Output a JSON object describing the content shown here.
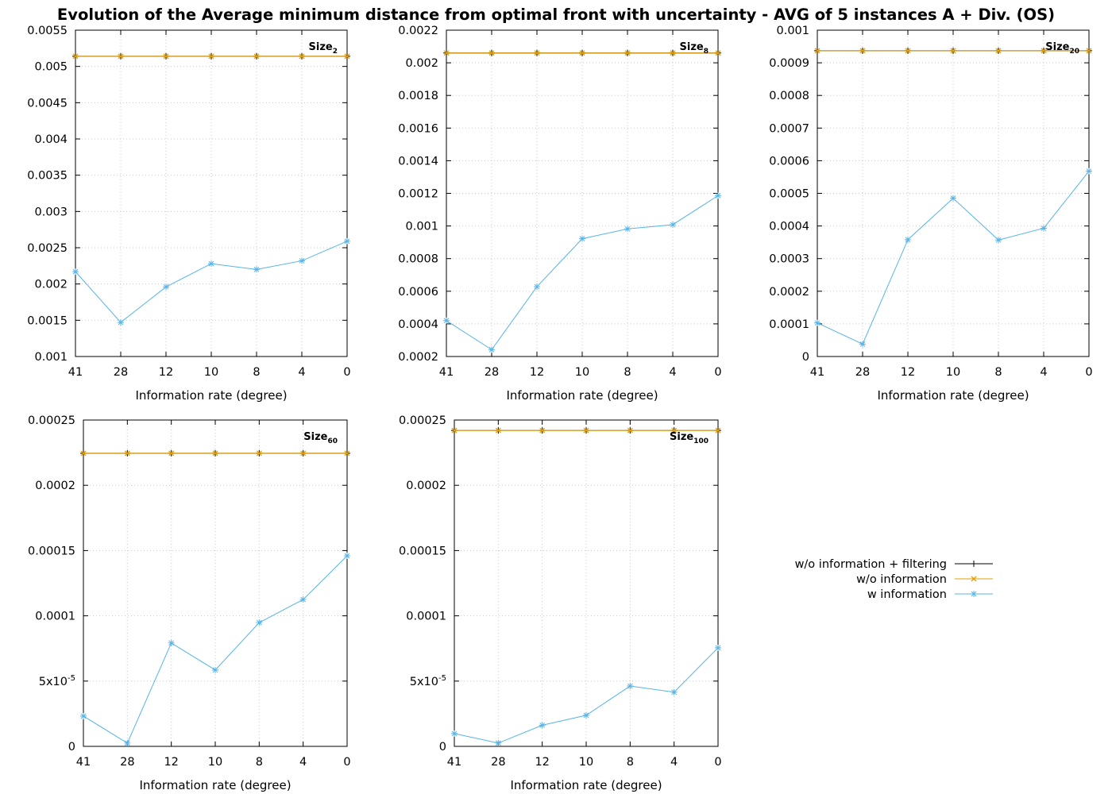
{
  "chart_data": {
    "type": "line",
    "title": "Evolution of the Average minimum distance from optimal front with uncertainty - AVG of 5 instances A + Div. (OS)",
    "x_categories": [
      "41",
      "28",
      "12",
      "10",
      "8",
      "4",
      "0"
    ],
    "xlabel": "Information rate (degree)",
    "grid": true,
    "colors": {
      "w/o information + filtering": "#000000",
      "w/o information": "#e69f00",
      "w information": "#56b4e9"
    },
    "legend": {
      "placement": "right, below top row",
      "entries": [
        "w/o information + filtering",
        "w/o information",
        "w information"
      ]
    },
    "panels": [
      {
        "label_base": "Size",
        "label_sub": "2",
        "label_position": "top-right",
        "ylim": [
          0.001,
          0.0055
        ],
        "ytick_values": [
          0.001,
          0.0015,
          0.002,
          0.0025,
          0.003,
          0.0035,
          0.004,
          0.0045,
          0.005,
          0.0055
        ],
        "ytick_labels": [
          "0.001",
          "0.0015",
          "0.002",
          "0.0025",
          "0.003",
          "0.0035",
          "0.004",
          "0.0045",
          "0.005",
          "0.0055"
        ],
        "series": [
          {
            "name": "w/o information + filtering",
            "values": [
              0.00514,
              0.00514,
              0.00514,
              0.00514,
              0.00514,
              0.00514,
              0.00514
            ]
          },
          {
            "name": "w/o information",
            "values": [
              0.00514,
              0.00514,
              0.00514,
              0.00514,
              0.00514,
              0.00514,
              0.00514
            ]
          },
          {
            "name": "w information",
            "values": [
              0.00217,
              0.00147,
              0.00196,
              0.00228,
              0.0022,
              0.00232,
              0.00259
            ]
          }
        ]
      },
      {
        "label_base": "Size",
        "label_sub": "8",
        "label_position": "top-right",
        "ylim": [
          0.0002,
          0.0022
        ],
        "ytick_values": [
          0.0002,
          0.0004,
          0.0006,
          0.0008,
          0.001,
          0.0012,
          0.0014,
          0.0016,
          0.0018,
          0.002,
          0.0022
        ],
        "ytick_labels": [
          "0.0002",
          "0.0004",
          "0.0006",
          "0.0008",
          "0.001",
          "0.0012",
          "0.0014",
          "0.0016",
          "0.0018",
          "0.002",
          "0.0022"
        ],
        "series": [
          {
            "name": "w/o information + filtering",
            "values": [
              0.00206,
              0.00206,
              0.00206,
              0.00206,
              0.00206,
              0.00206,
              0.00206
            ]
          },
          {
            "name": "w/o information",
            "values": [
              0.00206,
              0.00206,
              0.00206,
              0.00206,
              0.00206,
              0.00206,
              0.00206
            ]
          },
          {
            "name": "w information",
            "values": [
              0.00042,
              0.000242,
              0.000628,
              0.000922,
              0.000982,
              0.001008,
              0.001186
            ]
          }
        ]
      },
      {
        "label_base": "Size",
        "label_sub": "20",
        "label_position": "top-right",
        "ylim": [
          0,
          0.001
        ],
        "ytick_values": [
          0,
          0.0001,
          0.0002,
          0.0003,
          0.0004,
          0.0005,
          0.0006,
          0.0007,
          0.0008,
          0.0009,
          0.001
        ],
        "ytick_labels": [
          "0",
          "0.0001",
          "0.0002",
          "0.0003",
          "0.0004",
          "0.0005",
          "0.0006",
          "0.0007",
          "0.0008",
          "0.0009",
          "0.001"
        ],
        "series": [
          {
            "name": "w/o information + filtering",
            "values": [
              0.000937,
              0.000937,
              0.000937,
              0.000937,
              0.000937,
              0.000937,
              0.000937
            ]
          },
          {
            "name": "w/o information",
            "values": [
              0.000937,
              0.000937,
              0.000937,
              0.000937,
              0.000937,
              0.000937,
              0.000937
            ]
          },
          {
            "name": "w information",
            "values": [
              0.000103,
              3.8e-05,
              0.000358,
              0.000485,
              0.000357,
              0.000393,
              0.000568
            ]
          }
        ]
      },
      {
        "label_base": "Size",
        "label_sub": "60",
        "label_position": "top-right",
        "ylim": [
          0,
          0.00025
        ],
        "ytick_values": [
          0,
          5e-05,
          0.0001,
          0.00015,
          0.0002,
          0.00025
        ],
        "ytick_labels": [
          "0",
          "5x10-5",
          "0.0001",
          "0.00015",
          "0.0002",
          "0.00025"
        ],
        "series": [
          {
            "name": "w/o information + filtering",
            "values": [
              0.0002245,
              0.0002245,
              0.0002245,
              0.0002245,
              0.0002245,
              0.0002245,
              0.0002245
            ]
          },
          {
            "name": "w/o information",
            "values": [
              0.0002245,
              0.0002245,
              0.0002245,
              0.0002245,
              0.0002245,
              0.0002245,
              0.0002245
            ]
          },
          {
            "name": "w information",
            "values": [
              2.32e-05,
              2.5e-06,
              7.92e-05,
              5.85e-05,
              9.48e-05,
              0.0001125,
              0.000146
            ]
          }
        ]
      },
      {
        "label_base": "Size",
        "label_sub": "100",
        "label_position": "top-right",
        "ylim": [
          0,
          0.00025
        ],
        "ytick_values": [
          0,
          5e-05,
          0.0001,
          0.00015,
          0.0002,
          0.00025
        ],
        "ytick_labels": [
          "0",
          "5x10-5",
          "0.0001",
          "0.00015",
          "0.0002",
          "0.00025"
        ],
        "series": [
          {
            "name": "w/o information + filtering",
            "values": [
              0.000242,
              0.000242,
              0.000242,
              0.000242,
              0.000242,
              0.000242,
              0.000242
            ]
          },
          {
            "name": "w/o information",
            "values": [
              0.000242,
              0.000242,
              0.000242,
              0.000242,
              0.000242,
              0.000242,
              0.000242
            ]
          },
          {
            "name": "w information",
            "values": [
              9.8e-06,
              2.5e-06,
              1.62e-05,
              2.38e-05,
              4.62e-05,
              4.15e-05,
              7.55e-05
            ]
          }
        ]
      }
    ]
  }
}
